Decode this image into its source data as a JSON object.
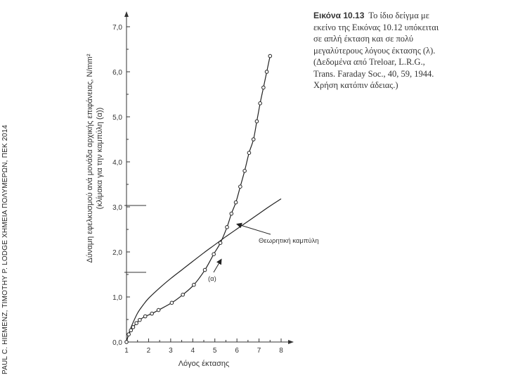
{
  "side_credit": "PAUL C. HIEMENZ, TIMOTHY P. LODGE ΧΗΜΕΙΑ ΠΟΛΥΜΕΡΩΝ, ΠΕΚ 2014",
  "caption": {
    "label": "Εικόνα 10.13",
    "text": "Το ίδιο δείγμα με εκείνο της Εικόνας 10.12 υπόκειται σε απλή έκταση και σε πολύ μεγαλύτερους λόγους έκτασης (λ). (Δεδομένα από Treloar, L.R.G., Trans. Faraday Soc., 40, 59, 1944. Χρήση κατόπιν άδειας.)"
  },
  "chart_data": {
    "type": "line",
    "xlabel": "Λόγος έκτασης",
    "ylabel": "Δύναμη εφελκυσμού ανά μονάδα αρχικής επιφάνειας, N/mm²",
    "ylabel2": "(κλίμακα για την καμπύλη (α))",
    "x_ticks": [
      "1",
      "2",
      "3",
      "4",
      "5",
      "6",
      "7",
      "8"
    ],
    "y_ticks": [
      "0,0",
      "1,0",
      "2,0",
      "3,0",
      "4,0",
      "5,0",
      "6,0",
      "7,0"
    ],
    "xlim": [
      1,
      8
    ],
    "ylim": [
      0,
      7
    ],
    "grid": false,
    "series": [
      {
        "name": "Θεωρητική καμπύλη",
        "type": "line",
        "x": [
          1.0,
          1.1,
          1.25,
          1.5,
          1.75,
          2.0,
          2.5,
          3.0,
          3.5,
          4.0,
          4.5,
          5.0,
          5.5,
          6.0,
          6.5,
          7.0,
          7.5,
          8.0
        ],
        "y": [
          0.0,
          0.18,
          0.38,
          0.64,
          0.82,
          0.97,
          1.2,
          1.41,
          1.6,
          1.79,
          1.98,
          2.16,
          2.34,
          2.51,
          2.68,
          2.85,
          3.02,
          3.18
        ]
      },
      {
        "name": "(α)",
        "type": "line+markers",
        "x": [
          1.0,
          1.1,
          1.2,
          1.3,
          1.45,
          1.6,
          1.85,
          2.15,
          2.45,
          3.05,
          3.55,
          4.05,
          4.55,
          4.95,
          5.25,
          5.55,
          5.75,
          5.95,
          6.15,
          6.35,
          6.55,
          6.75,
          6.9,
          7.05,
          7.2,
          7.35,
          7.5
        ],
        "y": [
          0.0,
          0.17,
          0.26,
          0.33,
          0.42,
          0.49,
          0.57,
          0.63,
          0.71,
          0.87,
          1.05,
          1.27,
          1.6,
          1.95,
          2.2,
          2.55,
          2.85,
          3.1,
          3.45,
          3.8,
          4.2,
          4.5,
          4.9,
          5.3,
          5.65,
          6.0,
          6.35
        ]
      }
    ],
    "annotations": [
      {
        "text": "Θεωρητική καμπύλη",
        "arrow_to": [
          5.9,
          2.65
        ]
      },
      {
        "text": "(α)",
        "arrow_to": [
          5.2,
          1.9
        ]
      }
    ]
  }
}
